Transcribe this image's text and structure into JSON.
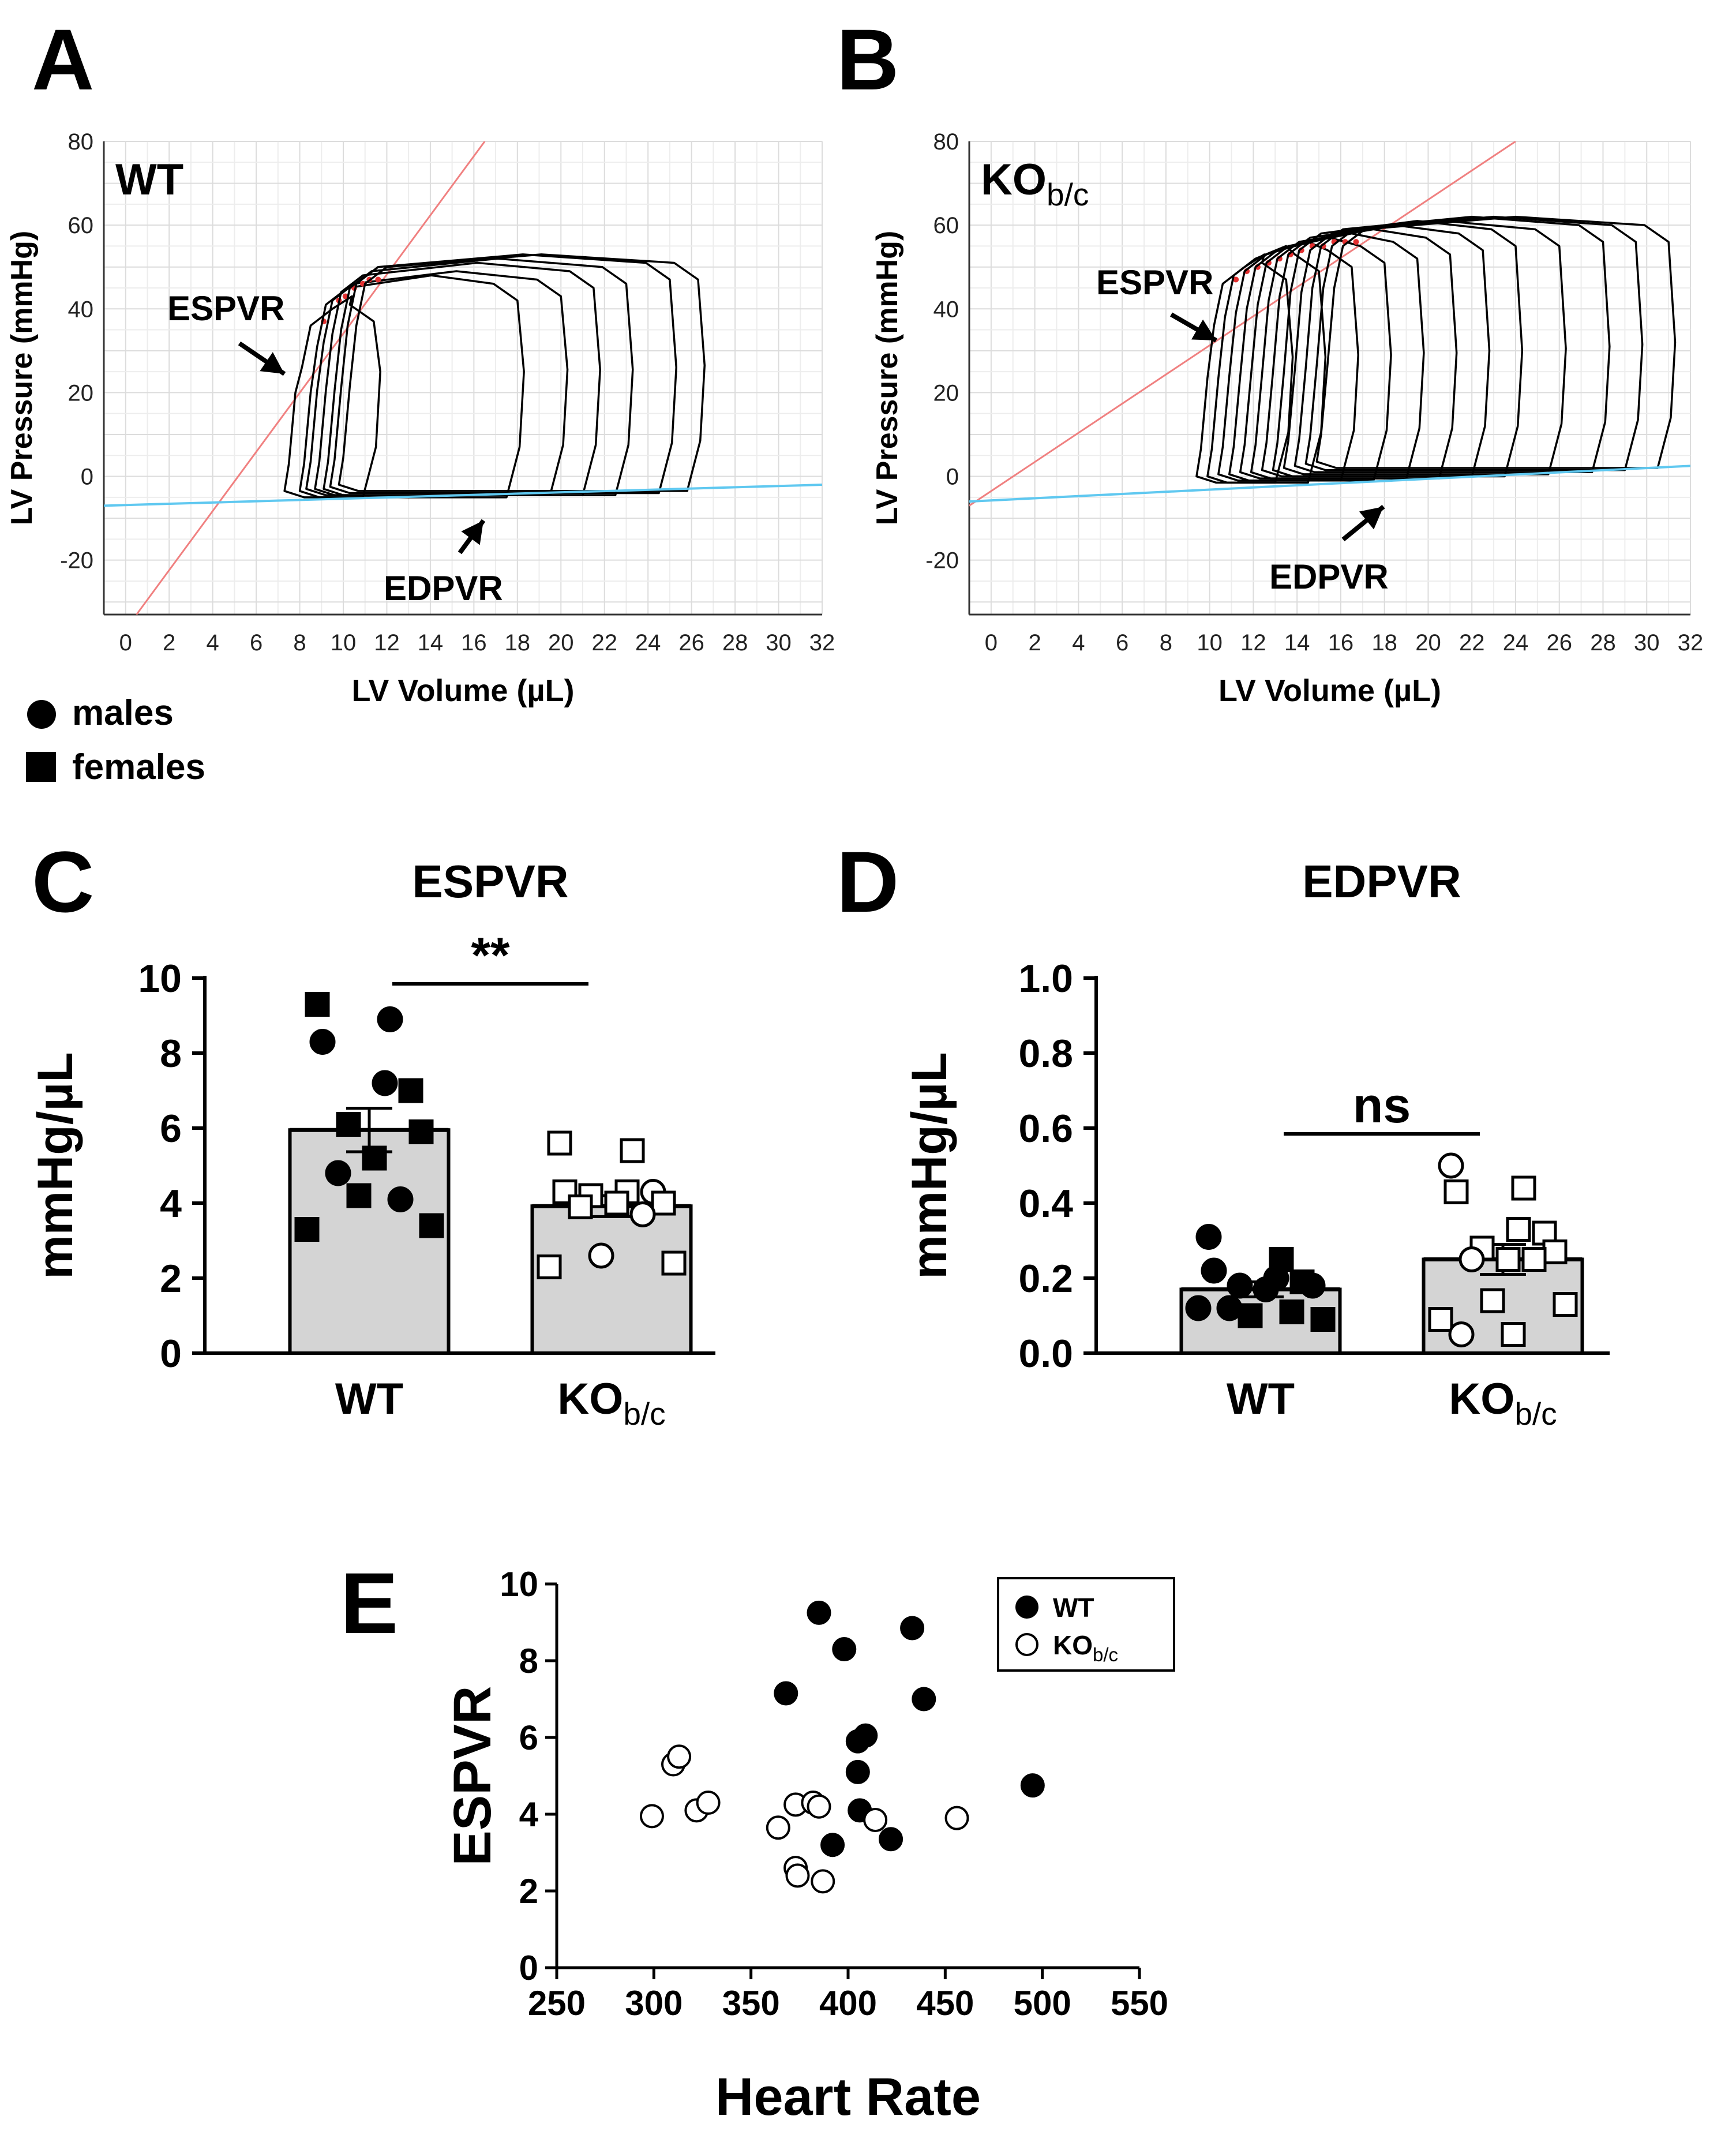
{
  "legend_sex": {
    "males": "males",
    "females": "females"
  },
  "chart_data": [
    {
      "panel": "A",
      "type": "line",
      "title": "WT",
      "xlabel": "LV Volume (µL)",
      "ylabel": "LV Pressure (mmHg)",
      "xlim": [
        -1,
        32
      ],
      "ylim": [
        -33,
        80
      ],
      "xticks": [
        "0",
        "2",
        "4",
        "6",
        "8",
        "10",
        "12",
        "14",
        "16",
        "18",
        "20",
        "22",
        "24",
        "26",
        "28",
        "30",
        "32"
      ],
      "yticks": [
        "-20",
        "0",
        "20",
        "40",
        "60",
        "80"
      ],
      "espvr_line": {
        "label": "ESPVR",
        "points": [
          [
            0.5,
            -33
          ],
          [
            16.5,
            80
          ]
        ],
        "color": "#f08080"
      },
      "edpvr_line": {
        "label": "EDPVR",
        "points": [
          [
            -1,
            -7
          ],
          [
            32,
            -2
          ]
        ],
        "color": "#5fc8f0"
      },
      "loops": [
        {
          "esv": 7.9,
          "edv": 10.9,
          "esp": 38,
          "edp": -5
        },
        {
          "esv": 8.6,
          "edv": 17.5,
          "esp": 43,
          "edp": -5
        },
        {
          "esv": 8.9,
          "edv": 19.5,
          "esp": 44,
          "edp": -4.5
        },
        {
          "esv": 9.3,
          "edv": 21.0,
          "esp": 46,
          "edp": -4.5
        },
        {
          "esv": 9.7,
          "edv": 22.5,
          "esp": 47,
          "edp": -4.5
        },
        {
          "esv": 10.0,
          "edv": 24.5,
          "esp": 48,
          "edp": -4.0
        },
        {
          "esv": 10.4,
          "edv": 25.8,
          "esp": 48,
          "edp": -3.5
        }
      ]
    },
    {
      "panel": "B",
      "type": "line",
      "title": "KO",
      "title_sub": "b/c",
      "xlabel": "LV Volume (µL)",
      "ylabel": "LV Pressure (mmHg)",
      "xlim": [
        -1,
        32
      ],
      "ylim": [
        -33,
        80
      ],
      "xticks": [
        "0",
        "2",
        "4",
        "6",
        "8",
        "10",
        "12",
        "14",
        "16",
        "18",
        "20",
        "22",
        "24",
        "26",
        "28",
        "30",
        "32"
      ],
      "yticks": [
        "-20",
        "0",
        "20",
        "40",
        "60",
        "80"
      ],
      "espvr_line": {
        "label": "ESPVR",
        "points": [
          [
            -1,
            -7
          ],
          [
            24,
            80
          ]
        ],
        "color": "#f08080"
      },
      "edpvr_line": {
        "label": "EDPVR",
        "points": [
          [
            -1,
            -6
          ],
          [
            32,
            2.5
          ]
        ],
        "color": "#5fc8f0"
      },
      "loops": [
        {
          "esv": 10.0,
          "edv": 13.0,
          "esp": 48,
          "edp": -1.5
        },
        {
          "esv": 10.5,
          "edv": 14.5,
          "esp": 50,
          "edp": -1.5
        },
        {
          "esv": 11.0,
          "edv": 16.0,
          "esp": 51,
          "edp": -1.0
        },
        {
          "esv": 11.5,
          "edv": 17.5,
          "esp": 52,
          "edp": -1.0
        },
        {
          "esv": 12.0,
          "edv": 19.0,
          "esp": 53,
          "edp": -0.5
        },
        {
          "esv": 12.5,
          "edv": 20.5,
          "esp": 54,
          "edp": -0.5
        },
        {
          "esv": 13.0,
          "edv": 22.0,
          "esp": 55,
          "edp": 0.0
        },
        {
          "esv": 13.5,
          "edv": 23.5,
          "esp": 56,
          "edp": 0.0
        },
        {
          "esv": 14.0,
          "edv": 25.5,
          "esp": 56,
          "edp": 0.5
        },
        {
          "esv": 14.5,
          "edv": 27.5,
          "esp": 57,
          "edp": 1.0
        },
        {
          "esv": 15.0,
          "edv": 29.0,
          "esp": 57,
          "edp": 1.5
        },
        {
          "esv": 15.5,
          "edv": 30.5,
          "esp": 57,
          "edp": 2.0
        }
      ]
    },
    {
      "panel": "C",
      "type": "bar",
      "title": "ESPVR",
      "ylabel": "mmHg/µL",
      "ylim": [
        0,
        10
      ],
      "yticks": [
        "0",
        "2",
        "4",
        "6",
        "8",
        "10"
      ],
      "categories": [
        "WT",
        "KO"
      ],
      "category_subs": [
        "",
        "b/c"
      ],
      "means": [
        5.95,
        3.92
      ],
      "sem": [
        0.58,
        0.28
      ],
      "significance": "**",
      "points": [
        [
          {
            "v": 9.3,
            "sex": "f"
          },
          {
            "v": 8.9,
            "sex": "m"
          },
          {
            "v": 8.3,
            "sex": "m"
          },
          {
            "v": 7.2,
            "sex": "m"
          },
          {
            "v": 7.0,
            "sex": "f"
          },
          {
            "v": 6.1,
            "sex": "f"
          },
          {
            "v": 5.9,
            "sex": "f"
          },
          {
            "v": 5.2,
            "sex": "f"
          },
          {
            "v": 4.8,
            "sex": "m"
          },
          {
            "v": 4.1,
            "sex": "m"
          },
          {
            "v": 4.2,
            "sex": "f"
          },
          {
            "v": 3.4,
            "sex": "f"
          },
          {
            "v": 3.3,
            "sex": "f"
          }
        ],
        [
          {
            "v": 5.6,
            "sex": "f"
          },
          {
            "v": 5.4,
            "sex": "f"
          },
          {
            "v": 4.3,
            "sex": "f"
          },
          {
            "v": 4.3,
            "sex": "f"
          },
          {
            "v": 4.3,
            "sex": "m"
          },
          {
            "v": 4.2,
            "sex": "f"
          },
          {
            "v": 4.0,
            "sex": "f"
          },
          {
            "v": 4.0,
            "sex": "f"
          },
          {
            "v": 3.9,
            "sex": "f"
          },
          {
            "v": 3.7,
            "sex": "m"
          },
          {
            "v": 2.6,
            "sex": "m"
          },
          {
            "v": 2.4,
            "sex": "f"
          },
          {
            "v": 2.3,
            "sex": "f"
          }
        ]
      ]
    },
    {
      "panel": "D",
      "type": "bar",
      "title": "EDPVR",
      "ylabel": "mmHg/µL",
      "ylim": [
        0,
        1.0
      ],
      "yticks": [
        "0.0",
        "0.2",
        "0.4",
        "0.6",
        "0.8",
        "1.0"
      ],
      "categories": [
        "WT",
        "KO"
      ],
      "category_subs": [
        "",
        "b/c"
      ],
      "means": [
        0.17,
        0.25
      ],
      "sem": [
        0.02,
        0.04
      ],
      "significance": "ns",
      "points": [
        [
          {
            "v": 0.31,
            "sex": "m"
          },
          {
            "v": 0.25,
            "sex": "f"
          },
          {
            "v": 0.22,
            "sex": "m"
          },
          {
            "v": 0.2,
            "sex": "m"
          },
          {
            "v": 0.19,
            "sex": "f"
          },
          {
            "v": 0.18,
            "sex": "m"
          },
          {
            "v": 0.18,
            "sex": "m"
          },
          {
            "v": 0.17,
            "sex": "m"
          },
          {
            "v": 0.12,
            "sex": "m"
          },
          {
            "v": 0.11,
            "sex": "f"
          },
          {
            "v": 0.1,
            "sex": "f"
          },
          {
            "v": 0.09,
            "sex": "f"
          },
          {
            "v": 0.12,
            "sex": "m"
          }
        ],
        [
          {
            "v": 0.5,
            "sex": "m"
          },
          {
            "v": 0.44,
            "sex": "f"
          },
          {
            "v": 0.43,
            "sex": "f"
          },
          {
            "v": 0.33,
            "sex": "f"
          },
          {
            "v": 0.32,
            "sex": "f"
          },
          {
            "v": 0.28,
            "sex": "f"
          },
          {
            "v": 0.27,
            "sex": "f"
          },
          {
            "v": 0.25,
            "sex": "f"
          },
          {
            "v": 0.25,
            "sex": "m"
          },
          {
            "v": 0.25,
            "sex": "f"
          },
          {
            "v": 0.14,
            "sex": "f"
          },
          {
            "v": 0.13,
            "sex": "f"
          },
          {
            "v": 0.09,
            "sex": "f"
          },
          {
            "v": 0.05,
            "sex": "f"
          },
          {
            "v": 0.05,
            "sex": "m"
          }
        ]
      ]
    },
    {
      "panel": "E",
      "type": "scatter",
      "xlabel": "Heart Rate",
      "ylabel": "ESPVR",
      "xlim": [
        250,
        550
      ],
      "ylim": [
        0,
        10
      ],
      "xticks": [
        "250",
        "300",
        "350",
        "400",
        "450",
        "500",
        "550"
      ],
      "yticks": [
        "0",
        "2",
        "4",
        "6",
        "8",
        "10"
      ],
      "series": [
        {
          "name": "WT",
          "name_sub": "",
          "fill": "filled",
          "x": [
            385,
            433,
            398,
            368,
            439,
            405,
            409,
            405,
            406,
            392,
            422,
            495
          ],
          "y": [
            9.25,
            8.85,
            8.3,
            7.15,
            7.0,
            5.9,
            6.05,
            5.1,
            4.1,
            3.2,
            3.35,
            4.75
          ]
        },
        {
          "name": "KO",
          "name_sub": "b/c",
          "fill": "open",
          "x": [
            299,
            310,
            313,
            322,
            328,
            364,
            373,
            382,
            385,
            414,
            456,
            373,
            374,
            387
          ],
          "y": [
            3.95,
            5.3,
            5.5,
            4.1,
            4.3,
            3.65,
            4.25,
            4.3,
            4.2,
            3.85,
            3.9,
            2.6,
            2.4,
            2.25
          ]
        }
      ]
    }
  ]
}
